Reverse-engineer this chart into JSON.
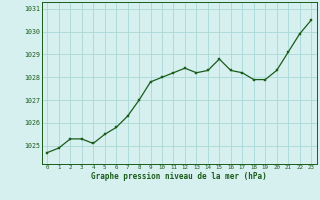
{
  "x": [
    0,
    1,
    2,
    3,
    4,
    5,
    6,
    7,
    8,
    9,
    10,
    11,
    12,
    13,
    14,
    15,
    16,
    17,
    18,
    19,
    20,
    21,
    22,
    23
  ],
  "y": [
    1024.7,
    1024.9,
    1025.3,
    1025.3,
    1025.1,
    1025.5,
    1025.8,
    1026.3,
    1027.0,
    1027.8,
    1028.0,
    1028.2,
    1028.4,
    1028.2,
    1028.3,
    1028.8,
    1028.3,
    1028.2,
    1027.9,
    1027.9,
    1028.3,
    1029.1,
    1029.9,
    1030.5
  ],
  "line_color": "#1a5c1a",
  "marker_color": "#1a5c1a",
  "bg_color": "#d6f0f0",
  "grid_color": "#a8d8d8",
  "xlabel": "Graphe pression niveau de la mer (hPa)",
  "xlabel_color": "#1a5c1a",
  "ylim": [
    1024.2,
    1031.3
  ],
  "xlim": [
    -0.5,
    23.5
  ],
  "ytick_vals": [
    1025,
    1026,
    1027,
    1028,
    1029,
    1030,
    1031
  ],
  "xtick_labels": [
    "0",
    "1",
    "2",
    "3",
    "4",
    "5",
    "6",
    "7",
    "8",
    "9",
    "10",
    "11",
    "12",
    "13",
    "14",
    "15",
    "16",
    "17",
    "18",
    "19",
    "20",
    "21",
    "22",
    "23"
  ]
}
